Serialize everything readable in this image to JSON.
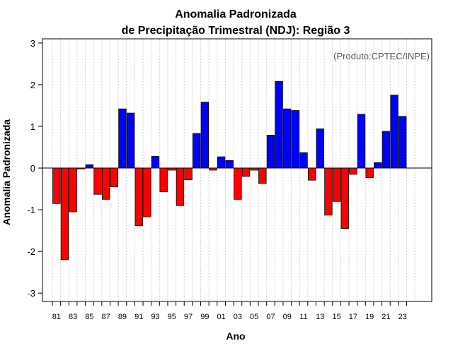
{
  "chart_data": {
    "type": "bar",
    "title_line1": "Anomalia Padronizada",
    "title_line2": "de Precipitação Trimestral (NDJ): Região 3",
    "annotation": "(Produto:CPTEC/INPE)",
    "xlabel": "Ano",
    "ylabel": "Anomalia Padronizada",
    "ylim": [
      -3.2,
      3.1
    ],
    "yticks": [
      -3,
      -2,
      -1,
      0,
      1,
      2,
      3
    ],
    "ytick_labels": [
      "-3",
      "-2",
      "-1",
      "0",
      "1",
      "2",
      "3"
    ],
    "grid": "vertical dotted",
    "positive_color": "#0000ff",
    "negative_color": "#ff0000",
    "categories": [
      "81",
      "82",
      "83",
      "84",
      "85",
      "86",
      "87",
      "88",
      "89",
      "90",
      "91",
      "92",
      "93",
      "94",
      "95",
      "96",
      "97",
      "98",
      "99",
      "00",
      "01",
      "02",
      "03",
      "04",
      "05",
      "06",
      "07",
      "08",
      "09",
      "10",
      "11",
      "12",
      "13",
      "14",
      "15",
      "16",
      "17",
      "18",
      "19",
      "20",
      "21",
      "22",
      "23"
    ],
    "tick_labels": [
      "81",
      "83",
      "85",
      "87",
      "89",
      "91",
      "93",
      "95",
      "97",
      "99",
      "01",
      "03",
      "05",
      "07",
      "09",
      "11",
      "13",
      "15",
      "17",
      "19",
      "21",
      "23"
    ],
    "values": [
      -0.85,
      -2.2,
      -1.05,
      -0.02,
      0.08,
      -0.63,
      -0.75,
      -0.45,
      1.42,
      1.32,
      -1.38,
      -1.17,
      0.28,
      -0.57,
      -0.05,
      -0.9,
      -0.28,
      0.83,
      1.58,
      -0.05,
      0.27,
      0.18,
      -0.75,
      -0.2,
      -0.05,
      -0.37,
      0.79,
      2.08,
      1.42,
      1.38,
      0.37,
      -0.29,
      0.94,
      -1.13,
      -0.8,
      -1.45,
      -0.15,
      1.29,
      -0.23,
      0.13,
      0.88,
      1.75,
      1.24
    ]
  }
}
